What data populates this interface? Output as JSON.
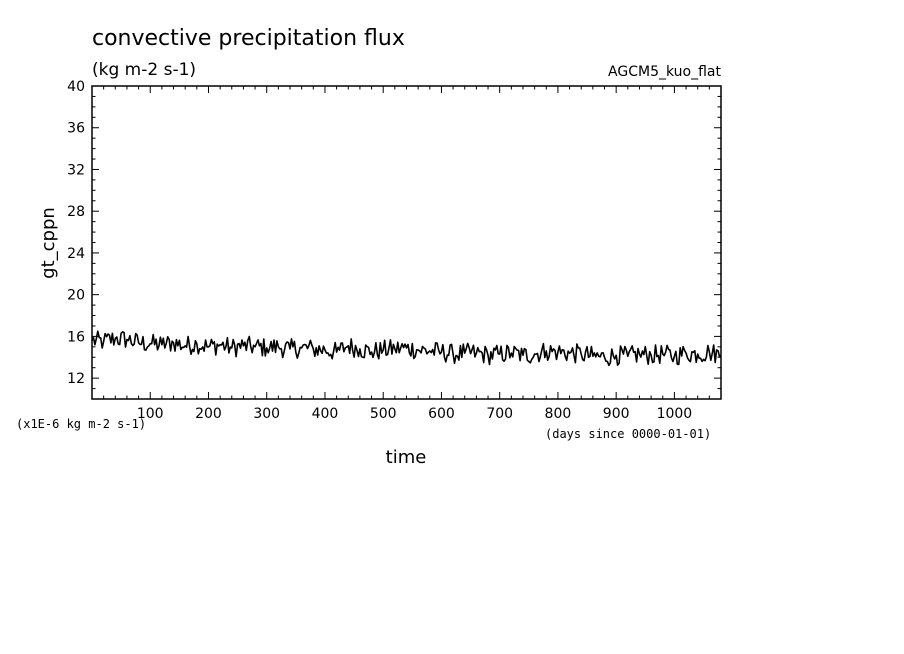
{
  "chart_data": {
    "type": "line",
    "title": "convective precipitation flux",
    "units_label": "(kg m-2 s-1)",
    "source_label": "AGCM5_kuo_flat",
    "xlabel": "time",
    "ylabel": "gt_cppn",
    "y_scale_note": "(x1E-6 kg m-2 s-1)",
    "x_units_note": "(days since 0000-01-01)",
    "xlim": [
      0,
      1080
    ],
    "ylim": [
      10,
      40
    ],
    "x_ticks": [
      100,
      200,
      300,
      400,
      500,
      600,
      700,
      800,
      900,
      1000
    ],
    "y_ticks": [
      12,
      16,
      20,
      24,
      28,
      32,
      36,
      40
    ],
    "grid": false,
    "series": [
      {
        "color": "#000000",
        "x": [
          0,
          20,
          40,
          60,
          80,
          100,
          120,
          140,
          160,
          180,
          200,
          220,
          240,
          260,
          280,
          300,
          320,
          340,
          360,
          380,
          400,
          420,
          440,
          460,
          480,
          500,
          520,
          540,
          560,
          580,
          600,
          620,
          640,
          660,
          680,
          700,
          720,
          740,
          760,
          780,
          800,
          820,
          840,
          860,
          880,
          900,
          920,
          940,
          960,
          980,
          1000,
          1020,
          1040,
          1060,
          1080
        ],
        "y": [
          15.6,
          15.5,
          15.8,
          15.7,
          15.4,
          15.3,
          15.2,
          15.4,
          15.1,
          15.3,
          15.0,
          15.2,
          14.9,
          15.1,
          15.0,
          14.9,
          15.0,
          14.8,
          14.9,
          14.8,
          14.7,
          14.5,
          15.1,
          14.8,
          14.5,
          14.7,
          14.8,
          14.9,
          14.7,
          14.6,
          14.5,
          14.3,
          14.4,
          14.4,
          14.2,
          14.3,
          14.4,
          14.2,
          14.3,
          14.6,
          14.5,
          14.4,
          14.3,
          14.1,
          14.0,
          14.2,
          14.1,
          14.3,
          14.2,
          14.3,
          14.1,
          14.4,
          14.3,
          14.5,
          14.2
        ]
      }
    ]
  }
}
